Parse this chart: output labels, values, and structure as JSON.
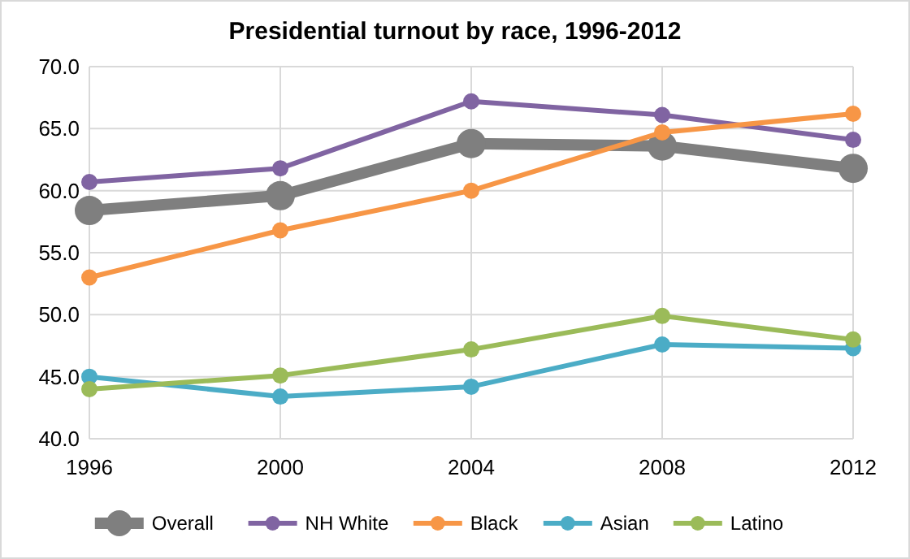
{
  "chart_data": {
    "type": "line",
    "title": "Presidential turnout by race, 1996-2012",
    "categories": [
      "1996",
      "2000",
      "2004",
      "2008",
      "2012"
    ],
    "series": [
      {
        "name": "Overall",
        "color": "#7f7f7f",
        "values": [
          58.4,
          59.6,
          63.8,
          63.6,
          61.8
        ]
      },
      {
        "name": "NH White",
        "color": "#8064a2",
        "values": [
          60.7,
          61.8,
          67.2,
          66.1,
          64.1
        ]
      },
      {
        "name": "Black",
        "color": "#f79646",
        "values": [
          53.0,
          56.8,
          60.0,
          64.7,
          66.2
        ]
      },
      {
        "name": "Asian",
        "color": "#4bacc6",
        "values": [
          45.0,
          43.4,
          44.2,
          47.6,
          47.3
        ]
      },
      {
        "name": "Latino",
        "color": "#9bbb59",
        "values": [
          44.0,
          45.1,
          47.2,
          49.9,
          48.0
        ]
      }
    ],
    "ylim": [
      40,
      70
    ],
    "yticks": [
      {
        "value": 40,
        "label": "40.0"
      },
      {
        "value": 45,
        "label": "45.0"
      },
      {
        "value": 50,
        "label": "50.0"
      },
      {
        "value": 55,
        "label": "55.0"
      },
      {
        "value": 60,
        "label": "60.0"
      },
      {
        "value": 65,
        "label": "65.0"
      },
      {
        "value": 70,
        "label": "70.0"
      }
    ],
    "grid": true,
    "legend": "bottom",
    "marker": "circle",
    "line_style": "solid"
  }
}
